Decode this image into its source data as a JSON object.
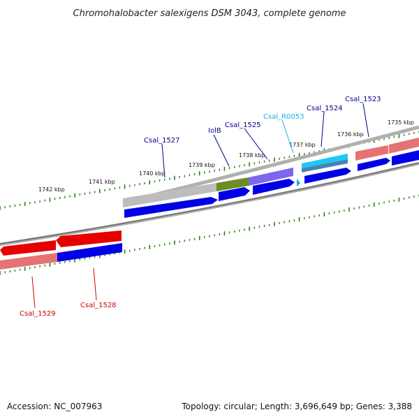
{
  "title": "Chromohalobacter salexigens DSM 3043, complete genome",
  "footer": {
    "accession": "Accession: NC_007963",
    "summary": "Topology: circular; Length: 3,696,649 bp; Genes: 3,388"
  },
  "colors": {
    "backbone": "#808080",
    "tick": "#2e7d1a",
    "forward_cds": "#0000e6",
    "reverse_cds": "#e60000",
    "label_blue": "#00008b",
    "label_cyan": "#1ab0e6",
    "label_red": "#cc0000"
  },
  "ticks": [
    "1735 kbp",
    "1736 kbp",
    "1737 kbp",
    "1738 kbp",
    "1739 kbp",
    "1740 kbp",
    "1741 kbp",
    "1742 kbp"
  ],
  "genes": [
    {
      "id": "csal-1523",
      "label": "Csal_1523",
      "color": "label_blue"
    },
    {
      "id": "csal-1524",
      "label": "Csal_1524",
      "color": "label_blue"
    },
    {
      "id": "csal-r0053",
      "label": "Csal_R0053",
      "color": "label_cyan"
    },
    {
      "id": "csal-1525",
      "label": "Csal_1525",
      "color": "label_blue"
    },
    {
      "id": "iolb",
      "label": "IolB",
      "color": "label_blue"
    },
    {
      "id": "csal-1527",
      "label": "Csal_1527",
      "color": "label_blue"
    },
    {
      "id": "csal-1528",
      "label": "Csal_1528",
      "color": "label_red"
    },
    {
      "id": "csal-1529",
      "label": "Csal_1529",
      "color": "label_red"
    }
  ]
}
